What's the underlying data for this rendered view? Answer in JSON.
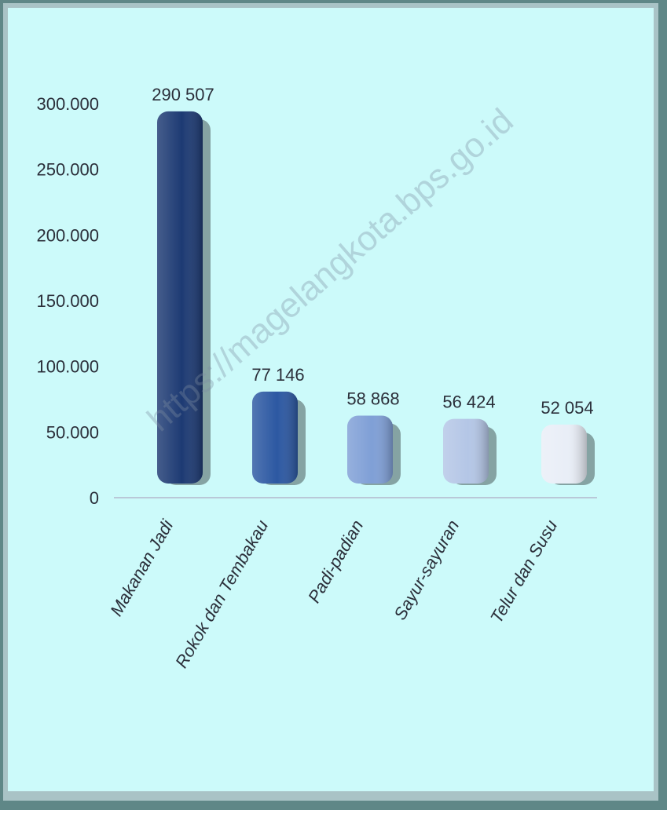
{
  "colors": {
    "background": "#ccfafa",
    "frame_light": "#a9c3c6",
    "frame_dark": "#5f8787",
    "axis": "#b9c8d8"
  },
  "watermark": "https://magelangkota.bps.go.id",
  "chart_data": {
    "type": "bar",
    "title": "",
    "xlabel": "",
    "ylabel": "",
    "ylim": [
      0,
      300000
    ],
    "yticks": [
      {
        "value": 0,
        "label": "0"
      },
      {
        "value": 50000,
        "label": "50.000"
      },
      {
        "value": 100000,
        "label": "100.000"
      },
      {
        "value": 150000,
        "label": "150.000"
      },
      {
        "value": 200000,
        "label": "200.000"
      },
      {
        "value": 250000,
        "label": "250.000"
      },
      {
        "value": 300000,
        "label": "300.000"
      }
    ],
    "categories": [
      "Makanan Jadi",
      "Rokok dan Tembakau",
      "Padi-padian",
      "Sayur-sayuran",
      "Telur dan Susu"
    ],
    "values": [
      290507,
      77146,
      58868,
      56424,
      52054
    ],
    "value_labels": [
      "290 507",
      "77 146",
      "58 868",
      "56 424",
      "52 054"
    ],
    "bar_colors": [
      "#1d3a73",
      "#2c58a2",
      "#7f9fd6",
      "#b4c6e6",
      "#e9eef7"
    ],
    "grid": false,
    "legend": "none"
  }
}
